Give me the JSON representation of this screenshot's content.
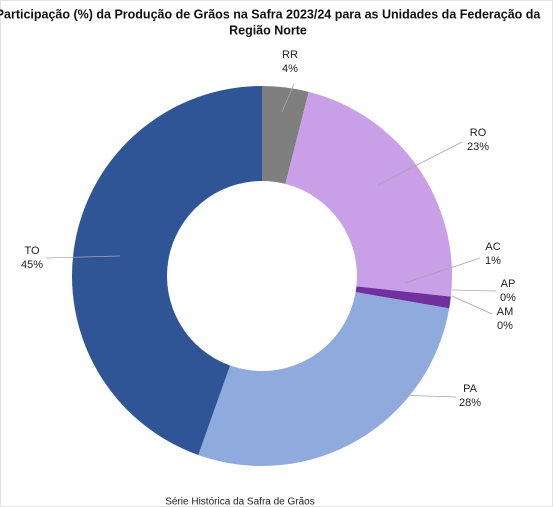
{
  "chart_data": {
    "type": "donut",
    "title": [
      "Participação (%) da Produção de Grãos na Safra 2023/24 para as Unidades da Federação da",
      "Região Norte"
    ],
    "categories": [
      "RR",
      "RO",
      "AC",
      "AP",
      "AM",
      "PA",
      "TO"
    ],
    "values": [
      4,
      23,
      1,
      0,
      0,
      28,
      45
    ],
    "value_labels": [
      "4%",
      "23%",
      "1%",
      "0%",
      "0%",
      "28%",
      "45%"
    ],
    "colors": [
      "#7f7f7f",
      "#c9a0e8",
      "#7030a0",
      "#a9d18e",
      "#548235",
      "#8faadc",
      "#2f5597"
    ],
    "source": "Série Histórica da Safra de Grãos"
  }
}
